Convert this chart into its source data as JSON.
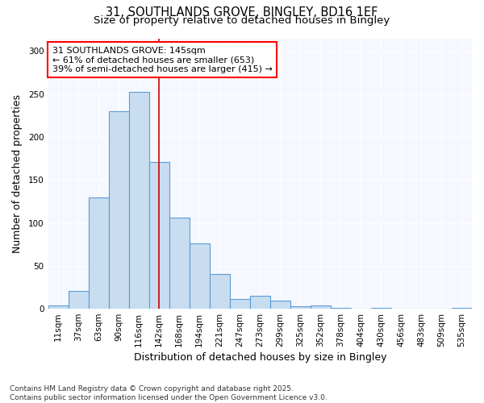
{
  "title_line1": "31, SOUTHLANDS GROVE, BINGLEY, BD16 1EF",
  "title_line2": "Size of property relative to detached houses in Bingley",
  "xlabel": "Distribution of detached houses by size in Bingley",
  "ylabel": "Number of detached properties",
  "bar_color": "#c8ddf0",
  "bar_edge_color": "#5b9bd5",
  "bg_color": "#ffffff",
  "plot_bg_color": "#f5f8ff",
  "categories": [
    "11sqm",
    "37sqm",
    "63sqm",
    "90sqm",
    "116sqm",
    "142sqm",
    "168sqm",
    "194sqm",
    "221sqm",
    "247sqm",
    "273sqm",
    "299sqm",
    "325sqm",
    "352sqm",
    "378sqm",
    "404sqm",
    "430sqm",
    "456sqm",
    "483sqm",
    "509sqm",
    "535sqm"
  ],
  "values": [
    4,
    21,
    130,
    230,
    253,
    171,
    106,
    76,
    40,
    11,
    15,
    9,
    3,
    4,
    1,
    0,
    1,
    0,
    0,
    0,
    1
  ],
  "annotation_text": "31 SOUTHLANDS GROVE: 145sqm\n← 61% of detached houses are smaller (653)\n39% of semi-detached houses are larger (415) →",
  "vline_x": 5.0,
  "vline_color": "#cc0000",
  "footnote": "Contains HM Land Registry data © Crown copyright and database right 2025.\nContains public sector information licensed under the Open Government Licence v3.0.",
  "ylim": [
    0,
    315
  ],
  "yticks": [
    0,
    50,
    100,
    150,
    200,
    250,
    300
  ],
  "title_fontsize": 10.5,
  "subtitle_fontsize": 9.5,
  "axis_label_fontsize": 9,
  "tick_fontsize": 7.5,
  "annotation_fontsize": 8,
  "footnote_fontsize": 6.5
}
